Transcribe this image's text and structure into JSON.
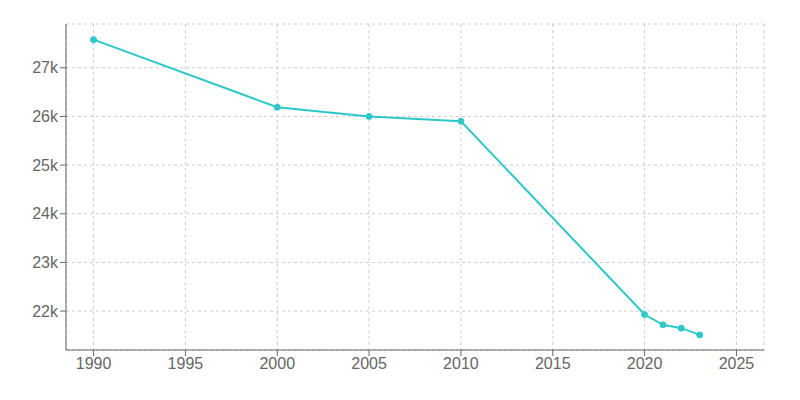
{
  "chart_data": {
    "type": "line",
    "x": [
      1990,
      2000,
      2005,
      2010,
      2020,
      2021,
      2022,
      2023
    ],
    "values": [
      27578,
      26189,
      26000,
      25902,
      21929,
      21718,
      21649,
      21510
    ],
    "color": "#2ec8c8",
    "marker": "circle",
    "xlim": [
      1988.5,
      2026.5
    ],
    "ylim": [
      21200,
      27900
    ],
    "xticks": [
      1990,
      1995,
      2000,
      2005,
      2010,
      2015,
      2020,
      2025
    ],
    "yticks": [
      {
        "value": 22000,
        "label": "22k"
      },
      {
        "value": 23000,
        "label": "23k"
      },
      {
        "value": 24000,
        "label": "24k"
      },
      {
        "value": 25000,
        "label": "25k"
      },
      {
        "value": 26000,
        "label": "26k"
      },
      {
        "value": 27000,
        "label": "27k"
      }
    ],
    "grid": true
  }
}
